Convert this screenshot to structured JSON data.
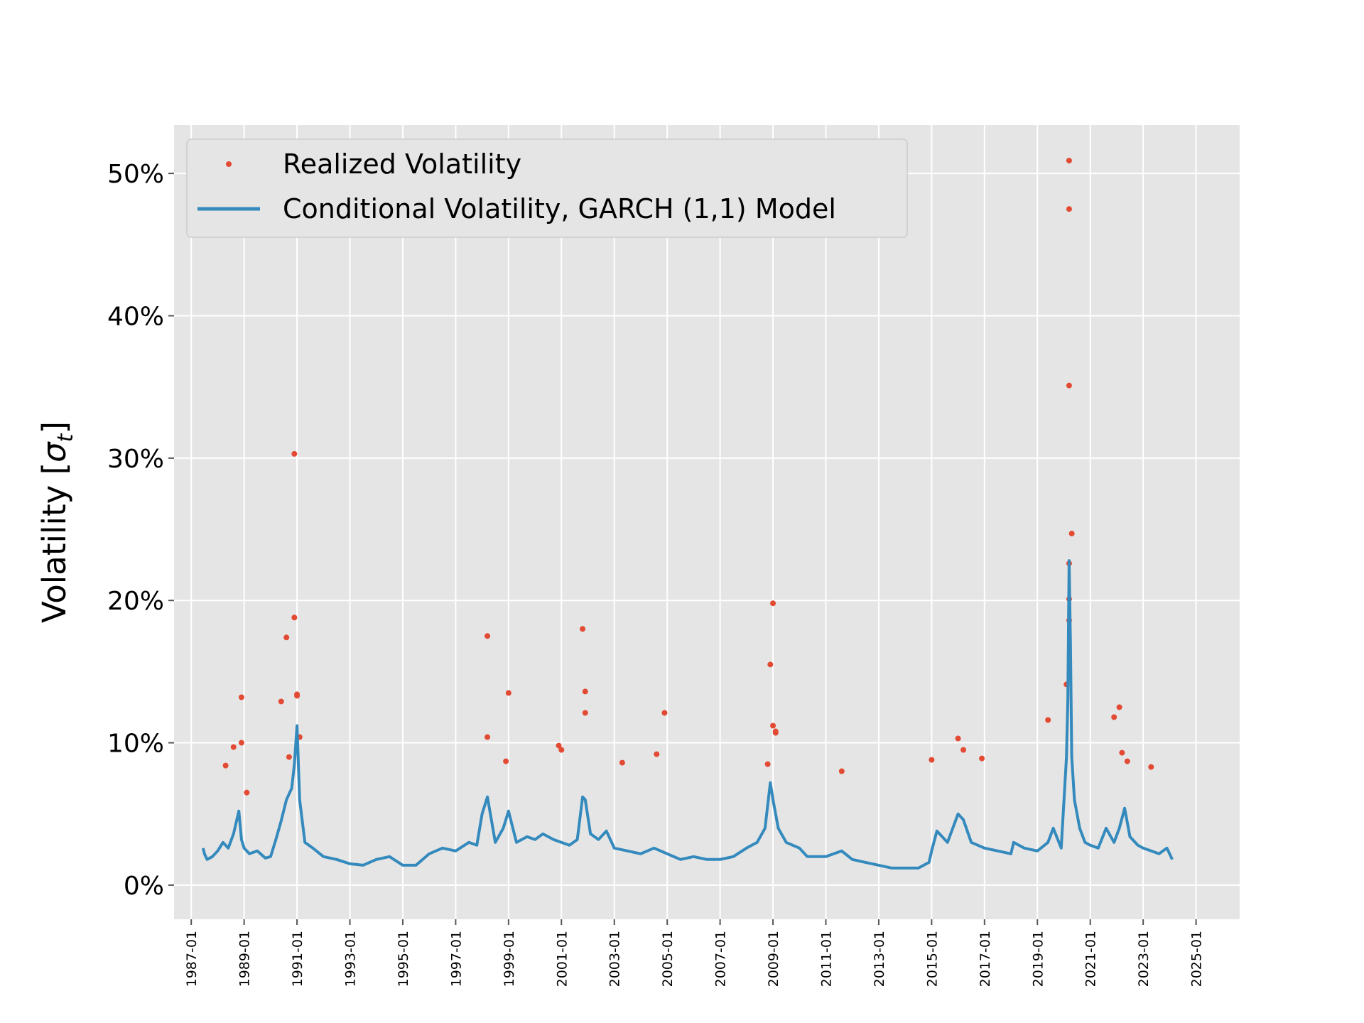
{
  "chart_data": {
    "type": "scatter+line",
    "title": "",
    "xlabel": "",
    "ylabel": "Volatility [σt]",
    "ylabel_parts": {
      "main": "Volatility [",
      "symbol": "σ",
      "subscript": "t",
      "close": "]"
    },
    "xlim": [
      1986.35,
      2026.65
    ],
    "ylim": [
      -0.024,
      0.534
    ],
    "grid": true,
    "legend_position": "top-left",
    "y_ticks": [
      {
        "value": 0.0,
        "label": "0%"
      },
      {
        "value": 0.1,
        "label": "10%"
      },
      {
        "value": 0.2,
        "label": "20%"
      },
      {
        "value": 0.3,
        "label": "30%"
      },
      {
        "value": 0.4,
        "label": "40%"
      },
      {
        "value": 0.5,
        "label": "50%"
      }
    ],
    "x_ticks": [
      {
        "value": 1987,
        "label": "1987-01"
      },
      {
        "value": 1989,
        "label": "1989-01"
      },
      {
        "value": 1991,
        "label": "1991-01"
      },
      {
        "value": 1993,
        "label": "1993-01"
      },
      {
        "value": 1995,
        "label": "1995-01"
      },
      {
        "value": 1997,
        "label": "1997-01"
      },
      {
        "value": 1999,
        "label": "1999-01"
      },
      {
        "value": 2001,
        "label": "2001-01"
      },
      {
        "value": 2003,
        "label": "2003-01"
      },
      {
        "value": 2005,
        "label": "2005-01"
      },
      {
        "value": 2007,
        "label": "2007-01"
      },
      {
        "value": 2009,
        "label": "2009-01"
      },
      {
        "value": 2011,
        "label": "2011-01"
      },
      {
        "value": 2013,
        "label": "2013-01"
      },
      {
        "value": 2015,
        "label": "2015-01"
      },
      {
        "value": 2017,
        "label": "2017-01"
      },
      {
        "value": 2019,
        "label": "2019-01"
      },
      {
        "value": 2021,
        "label": "2021-01"
      },
      {
        "value": 2023,
        "label": "2023-01"
      },
      {
        "value": 2025,
        "label": "2025-01"
      }
    ],
    "series": [
      {
        "name": "Realized Volatility",
        "style": "points",
        "color": "#E24A33",
        "x": [
          1988.6,
          1988.9,
          1988.9,
          1989.1,
          1990.4,
          1990.6,
          1990.9,
          1990.9,
          1991.0,
          1991.0,
          1991.1,
          1990.7,
          1988.3,
          1998.2,
          1998.2,
          1998.9,
          1999.0,
          2001.8,
          2001.9,
          2001.9,
          2000.9,
          2001.0,
          2004.9,
          2003.3,
          2004.6,
          2008.9,
          2009.0,
          2009.0,
          2009.1,
          2009.1,
          2008.8,
          2011.6,
          2015.0,
          2016.0,
          2016.2,
          2016.9,
          2020.2,
          2020.2,
          2020.2,
          2020.3,
          2020.2,
          2020.2,
          2020.2,
          2019.4,
          2021.9,
          2022.1,
          2022.2,
          2022.4,
          2023.3,
          2020.1
        ],
        "y": [
          0.097,
          0.132,
          0.1,
          0.065,
          0.129,
          0.174,
          0.303,
          0.188,
          0.134,
          0.133,
          0.104,
          0.09,
          0.084,
          0.175,
          0.104,
          0.087,
          0.135,
          0.18,
          0.136,
          0.121,
          0.098,
          0.095,
          0.121,
          0.086,
          0.092,
          0.155,
          0.198,
          0.112,
          0.107,
          0.108,
          0.085,
          0.08,
          0.088,
          0.103,
          0.095,
          0.089,
          0.509,
          0.475,
          0.351,
          0.247,
          0.226,
          0.201,
          0.186,
          0.116,
          0.118,
          0.125,
          0.093,
          0.087,
          0.083,
          0.141
        ]
      },
      {
        "name": "Conditional Volatility, GARCH (1,1) Model",
        "style": "line",
        "color": "#348ABD",
        "x": [
          1987.45,
          1987.5,
          1987.6,
          1987.8,
          1988.0,
          1988.2,
          1988.4,
          1988.6,
          1988.8,
          1988.9,
          1989.0,
          1989.2,
          1989.5,
          1989.8,
          1990.0,
          1990.2,
          1990.4,
          1990.6,
          1990.8,
          1990.9,
          1991.0,
          1991.1,
          1991.3,
          1991.6,
          1992.0,
          1992.5,
          1993.0,
          1993.5,
          1994.0,
          1994.5,
          1995.0,
          1995.5,
          1996.0,
          1996.5,
          1997.0,
          1997.5,
          1997.8,
          1998.0,
          1998.2,
          1998.5,
          1998.8,
          1999.0,
          1999.3,
          1999.7,
          2000.0,
          2000.3,
          2000.7,
          2001.0,
          2001.3,
          2001.6,
          2001.8,
          2001.9,
          2002.1,
          2002.4,
          2002.7,
          2003.0,
          2003.5,
          2004.0,
          2004.5,
          2005.0,
          2005.5,
          2006.0,
          2006.5,
          2007.0,
          2007.5,
          2008.0,
          2008.4,
          2008.7,
          2008.9,
          2009.0,
          2009.2,
          2009.5,
          2010.0,
          2010.3,
          2010.6,
          2011.0,
          2011.6,
          2012.0,
          2012.5,
          2013.0,
          2013.5,
          2014.0,
          2014.5,
          2014.9,
          2015.0,
          2015.2,
          2015.6,
          2016.0,
          2016.2,
          2016.5,
          2017.0,
          2017.5,
          2018.0,
          2018.1,
          2018.5,
          2019.0,
          2019.4,
          2019.6,
          2019.9,
          2020.1,
          2020.15,
          2020.2,
          2020.25,
          2020.3,
          2020.4,
          2020.6,
          2020.8,
          2021.0,
          2021.3,
          2021.6,
          2021.9,
          2022.1,
          2022.3,
          2022.5,
          2022.8,
          2023.0,
          2023.3,
          2023.6,
          2023.9,
          2024.1
        ],
        "y": [
          0.026,
          0.022,
          0.018,
          0.02,
          0.024,
          0.03,
          0.026,
          0.036,
          0.052,
          0.032,
          0.026,
          0.022,
          0.024,
          0.019,
          0.02,
          0.032,
          0.045,
          0.06,
          0.068,
          0.085,
          0.112,
          0.06,
          0.03,
          0.026,
          0.02,
          0.018,
          0.015,
          0.014,
          0.018,
          0.02,
          0.014,
          0.014,
          0.022,
          0.026,
          0.024,
          0.03,
          0.028,
          0.05,
          0.062,
          0.03,
          0.04,
          0.052,
          0.03,
          0.034,
          0.032,
          0.036,
          0.032,
          0.03,
          0.028,
          0.032,
          0.062,
          0.06,
          0.036,
          0.032,
          0.038,
          0.026,
          0.024,
          0.022,
          0.026,
          0.022,
          0.018,
          0.02,
          0.018,
          0.018,
          0.02,
          0.026,
          0.03,
          0.04,
          0.072,
          0.06,
          0.04,
          0.03,
          0.026,
          0.02,
          0.02,
          0.02,
          0.024,
          0.018,
          0.016,
          0.014,
          0.012,
          0.012,
          0.012,
          0.016,
          0.024,
          0.038,
          0.03,
          0.05,
          0.046,
          0.03,
          0.026,
          0.024,
          0.022,
          0.03,
          0.026,
          0.024,
          0.03,
          0.04,
          0.026,
          0.09,
          0.13,
          0.228,
          0.17,
          0.09,
          0.06,
          0.04,
          0.03,
          0.028,
          0.026,
          0.04,
          0.03,
          0.04,
          0.054,
          0.034,
          0.028,
          0.026,
          0.024,
          0.022,
          0.026,
          0.018
        ]
      }
    ]
  }
}
